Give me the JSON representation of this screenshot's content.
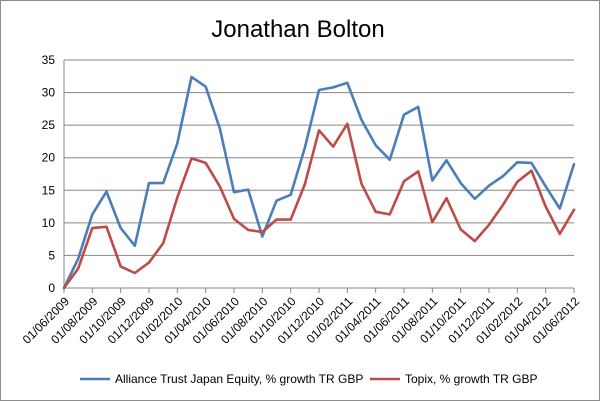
{
  "chart_data": {
    "type": "line",
    "title": "Jonathan Bolton",
    "xlabel": "",
    "ylabel": "",
    "ylim": [
      0,
      35
    ],
    "yticks": [
      "0",
      "5",
      "10",
      "15",
      "20",
      "25",
      "30",
      "35"
    ],
    "grid": true,
    "legend": "bottom",
    "x": [
      "01/06/2009",
      "01/07/2009",
      "01/08/2009",
      "01/09/2009",
      "01/10/2009",
      "01/11/2009",
      "01/12/2009",
      "01/01/2010",
      "01/02/2010",
      "01/03/2010",
      "01/04/2010",
      "01/05/2010",
      "01/06/2010",
      "01/07/2010",
      "01/08/2010",
      "01/09/2010",
      "01/10/2010",
      "01/11/2010",
      "01/12/2010",
      "01/01/2011",
      "01/02/2011",
      "01/03/2011",
      "01/04/2011",
      "01/05/2011",
      "01/06/2011",
      "01/07/2011",
      "01/08/2011",
      "01/09/2011",
      "01/10/2011",
      "01/11/2011",
      "01/12/2011",
      "01/01/2012",
      "01/02/2012",
      "01/03/2012",
      "01/04/2012",
      "01/05/2012",
      "01/06/2012"
    ],
    "xticks": [
      "01/06/2009",
      "01/08/2009",
      "01/10/2009",
      "01/12/2009",
      "01/02/2010",
      "01/04/2010",
      "01/06/2010",
      "01/08/2010",
      "01/10/2010",
      "01/12/2010",
      "01/02/2011",
      "01/04/2011",
      "01/06/2011",
      "01/08/2011",
      "01/10/2011",
      "01/12/2011",
      "01/02/2012",
      "01/04/2012",
      "01/06/2012"
    ],
    "series": [
      {
        "name": "Alliance Trust Japan Equity, % growth TR GBP",
        "color": "#4a7ebb",
        "values": [
          0,
          4.5,
          11.3,
          14.8,
          9.2,
          6.5,
          16.1,
          16.1,
          22.2,
          32.4,
          30.9,
          24.5,
          14.7,
          15.1,
          7.9,
          13.4,
          14.3,
          21.5,
          30.4,
          30.8,
          31.5,
          25.8,
          21.9,
          19.7,
          26.6,
          27.8,
          16.5,
          19.6,
          16.1,
          13.7,
          15.7,
          17.2,
          19.3,
          19.2,
          15.6,
          12.2,
          19.0
        ]
      },
      {
        "name": "Topix, % growth TR GBP",
        "color": "#be4b48",
        "values": [
          0,
          3.0,
          9.2,
          9.4,
          3.3,
          2.3,
          3.9,
          6.9,
          13.9,
          19.9,
          19.2,
          15.6,
          10.6,
          8.9,
          8.6,
          10.5,
          10.5,
          15.9,
          24.2,
          21.7,
          25.2,
          16.0,
          11.7,
          11.3,
          16.4,
          17.9,
          10.1,
          13.8,
          9.0,
          7.2,
          9.7,
          12.8,
          16.3,
          18.0,
          12.5,
          8.3,
          12.0
        ]
      }
    ]
  }
}
